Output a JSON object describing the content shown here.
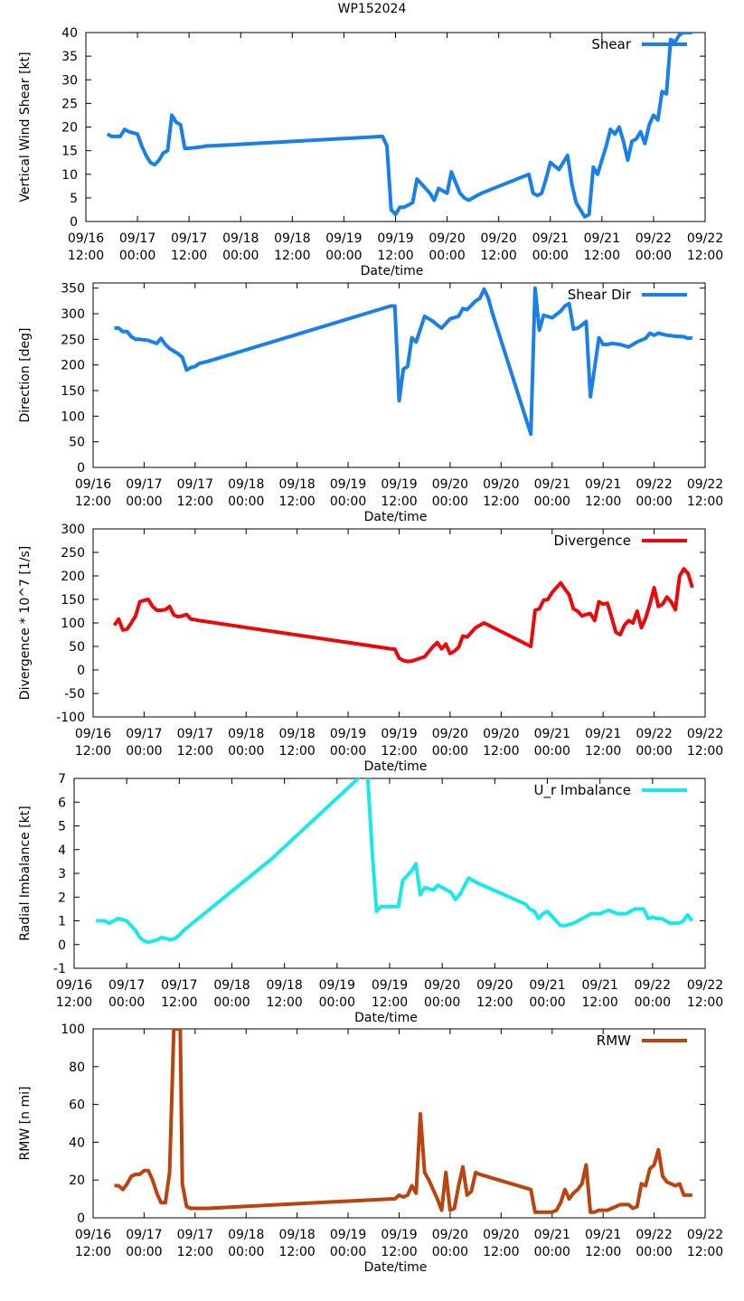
{
  "page_title": "WP152024",
  "x_ticks": [
    {
      "l1": "09/16",
      "l2": "12:00"
    },
    {
      "l1": "09/17",
      "l2": "00:00"
    },
    {
      "l1": "09/17",
      "l2": "12:00"
    },
    {
      "l1": "09/18",
      "l2": "00:00"
    },
    {
      "l1": "09/18",
      "l2": "12:00"
    },
    {
      "l1": "09/19",
      "l2": "00:00"
    },
    {
      "l1": "09/19",
      "l2": "12:00"
    },
    {
      "l1": "09/20",
      "l2": "00:00"
    },
    {
      "l1": "09/20",
      "l2": "12:00"
    },
    {
      "l1": "09/21",
      "l2": "00:00"
    },
    {
      "l1": "09/21",
      "l2": "12:00"
    },
    {
      "l1": "09/22",
      "l2": "00:00"
    },
    {
      "l1": "09/22",
      "l2": "12:00"
    }
  ],
  "x_hint": "x values are hours since 09/16 12:00",
  "chart_data": [
    {
      "type": "line",
      "title": "WP152024",
      "xlabel": "Date/time",
      "ylabel": "Vertical Wind Shear [kt]",
      "xlim": [
        0,
        144
      ],
      "ylim": [
        0,
        40
      ],
      "yticks": [
        0,
        5,
        10,
        15,
        20,
        25,
        30,
        35,
        40
      ],
      "legend": "top-right",
      "series": [
        {
          "name": "Shear",
          "color": "#1a7fe6",
          "x": [
            5,
            6,
            8,
            9,
            10,
            12,
            13,
            14,
            15,
            16,
            17,
            18,
            19,
            20,
            21,
            22,
            23,
            24,
            25,
            27,
            28,
            29,
            69,
            70,
            71,
            72,
            73,
            74,
            76,
            77,
            80,
            81,
            82,
            83,
            84,
            85,
            87,
            88,
            89,
            91,
            92,
            103,
            104,
            105,
            106,
            107,
            108,
            110,
            112,
            113,
            114,
            116,
            117,
            118,
            119,
            120,
            121,
            122,
            123,
            124,
            125,
            126,
            127,
            128,
            129,
            130,
            131,
            132,
            133,
            134,
            135,
            136,
            137,
            138,
            139,
            140,
            141
          ],
          "y": [
            18.5,
            18,
            18,
            19.5,
            19,
            18.5,
            16,
            14,
            12.5,
            12,
            13,
            14.5,
            15,
            22.5,
            21,
            20.5,
            15.5,
            15.5,
            15.6,
            15.8,
            16,
            16,
            18,
            16,
            2.5,
            1.5,
            3,
            3,
            4,
            9,
            6,
            4.5,
            7,
            6.5,
            6,
            10.5,
            6,
            5,
            4.5,
            5.5,
            6,
            10,
            6,
            5.5,
            6,
            9,
            12.5,
            11,
            14,
            8,
            4,
            1,
            1.5,
            11.5,
            10,
            13,
            16,
            19.5,
            18.5,
            20,
            17,
            13,
            17,
            17.5,
            19,
            16.5,
            20.5,
            22.5,
            21.5,
            27.5,
            27,
            38.5,
            38,
            39.5,
            40,
            40,
            40
          ]
        }
      ]
    },
    {
      "type": "line",
      "xlabel": "Date/time",
      "ylabel": "Direction [deg]",
      "xlim": [
        0,
        144
      ],
      "ylim": [
        0,
        360
      ],
      "yticks": [
        0,
        50,
        100,
        150,
        200,
        250,
        300,
        350
      ],
      "legend": "top-right",
      "series": [
        {
          "name": "Shear Dir",
          "color": "#1a7fe6",
          "x": [
            5,
            6,
            7,
            8,
            9,
            10,
            11,
            13,
            14,
            15,
            16,
            17,
            18,
            20,
            21,
            22,
            23,
            24,
            25,
            27,
            70,
            71,
            72,
            73,
            74,
            75,
            76,
            78,
            80,
            81,
            82,
            84,
            86,
            87,
            88,
            90,
            91,
            92,
            93,
            94,
            103,
            104,
            105,
            106,
            108,
            110,
            111,
            112,
            113,
            114,
            115,
            116,
            117,
            118,
            119,
            120,
            121,
            122,
            124,
            126,
            128,
            130,
            131,
            132,
            133,
            134,
            135,
            137,
            139,
            140,
            141
          ],
          "y": [
            272,
            272,
            265,
            265,
            255,
            250,
            250,
            248,
            245,
            242,
            252,
            240,
            232,
            222,
            215,
            190,
            195,
            197,
            203,
            207,
            315,
            315,
            130,
            192,
            197,
            253,
            245,
            295,
            285,
            278,
            272,
            290,
            295,
            310,
            308,
            325,
            330,
            348,
            330,
            300,
            65,
            350,
            268,
            297,
            292,
            305,
            315,
            320,
            270,
            272,
            278,
            285,
            138,
            195,
            253,
            240,
            240,
            242,
            240,
            235,
            245,
            252,
            262,
            258,
            262,
            260,
            258,
            256,
            255,
            252,
            253
          ]
        }
      ]
    },
    {
      "type": "line",
      "xlabel": "Date/time",
      "ylabel": "Divergence * 10^7 [1/s]",
      "xlim": [
        0,
        144
      ],
      "ylim": [
        -100,
        300
      ],
      "yticks": [
        -100,
        -50,
        0,
        50,
        100,
        150,
        200,
        250,
        300
      ],
      "legend": "top-right",
      "series": [
        {
          "name": "Divergence",
          "color": "#e8090c",
          "x": [
            5,
            6,
            7,
            8,
            9,
            10,
            11,
            12,
            13,
            14,
            15,
            16,
            17,
            18,
            19,
            20,
            21,
            22,
            23,
            24,
            25,
            70,
            71,
            72,
            73,
            74,
            75,
            76,
            78,
            80,
            81,
            82,
            83,
            84,
            85,
            86,
            87,
            88,
            90,
            92,
            103,
            104,
            105,
            106,
            107,
            108,
            110,
            111,
            112,
            113,
            114,
            115,
            116,
            117,
            118,
            119,
            120,
            121,
            122,
            123,
            124,
            125,
            126,
            127,
            128,
            129,
            130,
            131,
            132,
            133,
            134,
            135,
            136,
            137,
            138,
            139,
            140,
            141
          ],
          "y": [
            95,
            108,
            85,
            87,
            100,
            115,
            145,
            148,
            150,
            135,
            127,
            127,
            128,
            135,
            117,
            113,
            115,
            118,
            108,
            107,
            105,
            45,
            44,
            25,
            20,
            18,
            19,
            22,
            28,
            50,
            58,
            45,
            55,
            35,
            40,
            48,
            72,
            70,
            90,
            100,
            50,
            127,
            130,
            148,
            150,
            165,
            185,
            172,
            160,
            130,
            125,
            115,
            118,
            120,
            105,
            145,
            140,
            142,
            112,
            80,
            75,
            95,
            105,
            100,
            125,
            90,
            110,
            140,
            175,
            135,
            140,
            155,
            145,
            128,
            200,
            215,
            205,
            175
          ]
        }
      ]
    },
    {
      "type": "line",
      "xlabel": "Date/time",
      "ylabel": "Radial Imbalance [kt]",
      "xlim": [
        0,
        144
      ],
      "ylim": [
        -1,
        7
      ],
      "yticks": [
        -1,
        0,
        1,
        2,
        3,
        4,
        5,
        6,
        7
      ],
      "legend": "top-right",
      "series": [
        {
          "name": "U_r Imbalance",
          "color": "#1ae8e8",
          "x": [
            5,
            7,
            8,
            9,
            10,
            11,
            12,
            13,
            14,
            15,
            16,
            17,
            18,
            19,
            20,
            21,
            22,
            23,
            24,
            25,
            45,
            66,
            67,
            68,
            69,
            70,
            72,
            74,
            75,
            77,
            78,
            79,
            80,
            82,
            83,
            84,
            86,
            87,
            88,
            90,
            92,
            103,
            104,
            105,
            106,
            107,
            108,
            110,
            111,
            112,
            114,
            116,
            118,
            120,
            122,
            124,
            126,
            128,
            130,
            131,
            132,
            133,
            134,
            136,
            138,
            139,
            140,
            141
          ],
          "y": [
            1,
            1,
            0.9,
            1,
            1.1,
            1.05,
            1,
            0.8,
            0.6,
            0.3,
            0.15,
            0.1,
            0.15,
            0.2,
            0.3,
            0.25,
            0.2,
            0.25,
            0.4,
            0.6,
            3.6,
            7.2,
            7,
            4,
            1.4,
            1.6,
            1.6,
            1.6,
            2.7,
            3.1,
            3.4,
            2.1,
            2.4,
            2.3,
            2.5,
            2.4,
            2.2,
            1.9,
            2.1,
            2.8,
            2.6,
            1.7,
            1.5,
            1.4,
            1.1,
            1.3,
            1.4,
            1,
            0.8,
            0.8,
            0.9,
            1.1,
            1.3,
            1.3,
            1.45,
            1.3,
            1.3,
            1.5,
            1.5,
            1.1,
            1.15,
            1.1,
            1.1,
            0.9,
            0.9,
            1,
            1.25,
            1
          ]
        }
      ]
    },
    {
      "type": "line",
      "xlabel": "Date/time",
      "ylabel": "RMW [n mi]",
      "xlim": [
        0,
        144
      ],
      "ylim": [
        0,
        100
      ],
      "yticks": [
        0,
        20,
        40,
        60,
        80,
        100
      ],
      "legend": "top-right",
      "series": [
        {
          "name": "RMW",
          "color": "#b8440f",
          "x": [
            5,
            6,
            7,
            8,
            9,
            10,
            11,
            12,
            13,
            14,
            15,
            16,
            17,
            18,
            19,
            19.5,
            20,
            20.5,
            21,
            22,
            23,
            24,
            25,
            27,
            70,
            71,
            72,
            73,
            74,
            75,
            76,
            77,
            78,
            79,
            81,
            82,
            83,
            84,
            85,
            86,
            87,
            88,
            89,
            90,
            91,
            103,
            104,
            105,
            106,
            107,
            108,
            109,
            110,
            111,
            112,
            113,
            114,
            115,
            116,
            117,
            118,
            119,
            120,
            121,
            122,
            124,
            125,
            126,
            127,
            128,
            129,
            130,
            131,
            132,
            133,
            134,
            135,
            136,
            137,
            138,
            139,
            140,
            141
          ],
          "y": [
            17,
            17,
            15,
            18,
            22,
            23,
            23,
            25,
            25,
            20,
            13,
            8,
            8,
            24,
            100,
            100,
            100,
            100,
            18,
            6,
            5,
            5,
            5,
            5,
            10,
            10,
            12,
            11,
            12,
            17,
            13,
            55,
            24,
            20,
            10,
            4,
            24,
            4,
            5,
            17,
            27,
            12,
            14,
            24,
            23,
            15,
            3,
            3,
            3,
            3,
            3,
            4,
            8,
            15,
            10,
            13,
            15,
            18,
            28,
            3,
            3,
            4,
            4,
            4,
            5,
            7,
            7,
            7,
            5,
            6,
            18,
            17,
            26,
            28,
            36,
            22,
            19,
            18,
            17,
            18,
            12,
            12,
            12
          ]
        }
      ]
    }
  ]
}
